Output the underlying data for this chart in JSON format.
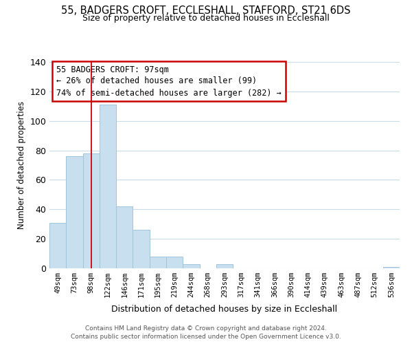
{
  "title": "55, BADGERS CROFT, ECCLESHALL, STAFFORD, ST21 6DS",
  "subtitle": "Size of property relative to detached houses in Eccleshall",
  "xlabel": "Distribution of detached houses by size in Eccleshall",
  "ylabel": "Number of detached properties",
  "bar_labels": [
    "49sqm",
    "73sqm",
    "98sqm",
    "122sqm",
    "146sqm",
    "171sqm",
    "195sqm",
    "219sqm",
    "244sqm",
    "268sqm",
    "293sqm",
    "317sqm",
    "341sqm",
    "366sqm",
    "390sqm",
    "414sqm",
    "439sqm",
    "463sqm",
    "487sqm",
    "512sqm",
    "536sqm"
  ],
  "bar_values": [
    31,
    76,
    78,
    111,
    42,
    26,
    8,
    8,
    3,
    0,
    3,
    0,
    0,
    0,
    0,
    0,
    0,
    0,
    0,
    0,
    1
  ],
  "bar_color": "#c8dff0",
  "bar_edge_color": "#a0c4dc",
  "ylim": [
    0,
    140
  ],
  "yticks": [
    0,
    20,
    40,
    60,
    80,
    100,
    120,
    140
  ],
  "property_line_x": 2,
  "property_line_color": "#cc0000",
  "annotation_title": "55 BADGERS CROFT: 97sqm",
  "annotation_line1": "← 26% of detached houses are smaller (99)",
  "annotation_line2": "74% of semi-detached houses are larger (282) →",
  "annotation_box_color": "#ffffff",
  "annotation_box_edge": "#cc0000",
  "footer_line1": "Contains HM Land Registry data © Crown copyright and database right 2024.",
  "footer_line2": "Contains public sector information licensed under the Open Government Licence v3.0.",
  "background_color": "#ffffff",
  "grid_color": "#c8dce8"
}
